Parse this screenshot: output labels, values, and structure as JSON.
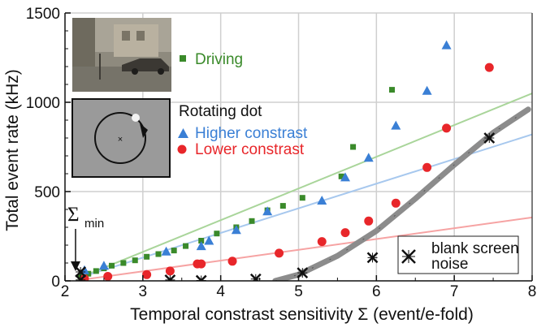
{
  "chart_data": {
    "type": "scatter",
    "xlabel": "Temporal constrast sensitivity Σ (event/e-fold)",
    "ylabel": "Total event rate (kHz)",
    "xlim": [
      2,
      8
    ],
    "ylim": [
      0,
      1500
    ],
    "xticks": [
      "2",
      "3",
      "4",
      "5",
      "6",
      "7",
      "8"
    ],
    "yticks": [
      "0",
      "500",
      "1000",
      "1500"
    ],
    "grid": true,
    "series": [
      {
        "name": "Driving",
        "marker": "square",
        "color": "#3a8a2a",
        "points": [
          [
            2.2,
            25
          ],
          [
            2.3,
            40
          ],
          [
            2.4,
            55
          ],
          [
            2.5,
            70
          ],
          [
            2.6,
            85
          ],
          [
            2.75,
            100
          ],
          [
            2.9,
            115
          ],
          [
            3.05,
            135
          ],
          [
            3.2,
            150
          ],
          [
            3.4,
            170
          ],
          [
            3.55,
            195
          ],
          [
            3.75,
            225
          ],
          [
            3.95,
            265
          ],
          [
            4.2,
            300
          ],
          [
            4.4,
            335
          ],
          [
            4.6,
            395
          ],
          [
            4.8,
            420
          ],
          [
            5.05,
            465
          ],
          [
            5.55,
            585
          ],
          [
            5.7,
            750
          ],
          [
            6.2,
            1070
          ]
        ]
      },
      {
        "name": "Higher constrast",
        "marker": "triangle",
        "color": "#3a7fd5",
        "points": [
          [
            2.25,
            60
          ],
          [
            2.5,
            85
          ],
          [
            3.3,
            165
          ],
          [
            3.75,
            195
          ],
          [
            3.85,
            225
          ],
          [
            4.2,
            285
          ],
          [
            4.6,
            390
          ],
          [
            5.3,
            450
          ],
          [
            5.6,
            580
          ],
          [
            5.9,
            690
          ],
          [
            6.25,
            870
          ],
          [
            6.65,
            1065
          ],
          [
            6.9,
            1320
          ]
        ]
      },
      {
        "name": "Lower constrast",
        "marker": "circle",
        "color": "#e8262a",
        "points": [
          [
            2.25,
            12
          ],
          [
            2.55,
            25
          ],
          [
            3.05,
            35
          ],
          [
            3.35,
            55
          ],
          [
            3.7,
            95
          ],
          [
            3.75,
            95
          ],
          [
            4.15,
            110
          ],
          [
            4.75,
            155
          ],
          [
            5.3,
            220
          ],
          [
            5.6,
            270
          ],
          [
            5.9,
            335
          ],
          [
            6.25,
            435
          ],
          [
            6.65,
            635
          ],
          [
            6.9,
            855
          ],
          [
            7.45,
            1195
          ]
        ]
      },
      {
        "name": "blank screen noise",
        "marker": "x",
        "color": "#111111",
        "points": [
          [
            2.2,
            50
          ],
          [
            2.2,
            5
          ],
          [
            3.35,
            5
          ],
          [
            3.75,
            2
          ],
          [
            4.45,
            10
          ],
          [
            5.05,
            45
          ],
          [
            5.95,
            130
          ],
          [
            7.45,
            800
          ]
        ]
      }
    ],
    "fit_lines": [
      {
        "series": "Driving",
        "color": "#a9d59a",
        "from": [
          2.2,
          20
        ],
        "to": [
          8,
          1050
        ]
      },
      {
        "series": "Higher constrast",
        "color": "#a7c8ee",
        "from": [
          2.2,
          20
        ],
        "to": [
          8,
          820
        ]
      },
      {
        "series": "Lower constrast",
        "color": "#f6a3a3",
        "from": [
          2.2,
          5
        ],
        "to": [
          8,
          355
        ]
      },
      {
        "series": "blank screen noise",
        "color": "#8c8c8c",
        "curve": [
          [
            4.7,
            0
          ],
          [
            5.0,
            35
          ],
          [
            5.5,
            140
          ],
          [
            6.0,
            280
          ],
          [
            6.5,
            460
          ],
          [
            7.0,
            650
          ],
          [
            7.5,
            830
          ],
          [
            7.95,
            960
          ]
        ]
      }
    ],
    "annotations": {
      "sigma_min": {
        "text": "Σ",
        "subscript": "min",
        "x": 2.2
      }
    },
    "legend": {
      "driving": "Driving",
      "group_title": "Rotating dot",
      "higher": "Higher constrast",
      "lower": "Lower constrast",
      "noise_line1": "blank screen",
      "noise_line2": "noise"
    }
  }
}
